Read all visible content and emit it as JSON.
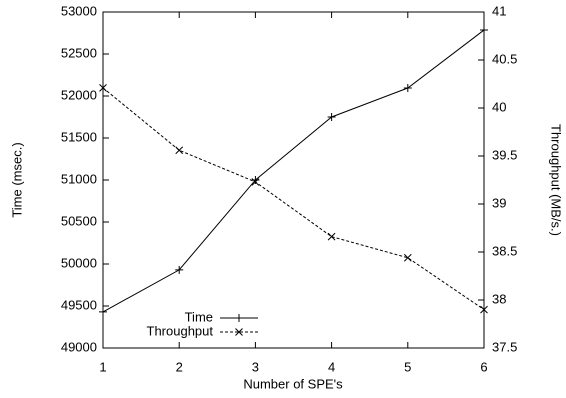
{
  "chart_data": {
    "type": "line",
    "x_label": "Number of SPE's",
    "y_label": "Time (msec.)",
    "y2_label": "Throughput (MB/s.)",
    "x": [
      1,
      2,
      3,
      4,
      5,
      6
    ],
    "xlim": [
      1,
      6
    ],
    "xticks": [
      1,
      2,
      3,
      4,
      5,
      6
    ],
    "ylim": [
      49000,
      53000
    ],
    "yticks": [
      49000,
      49500,
      50000,
      50500,
      51000,
      51500,
      52000,
      52500,
      53000
    ],
    "y2lim": [
      37.5,
      41
    ],
    "y2ticks": [
      37.5,
      38,
      38.5,
      39,
      39.5,
      40,
      40.5,
      41
    ],
    "legend": "lower left",
    "series": [
      {
        "name": "Time",
        "color": "#000000",
        "marker": "plus",
        "dash": "solid",
        "values": [
          49430,
          49930,
          51000,
          51750,
          52095,
          52785
        ]
      },
      {
        "name": "Throughput",
        "color": "#000000",
        "marker": "x",
        "dash": "dashed",
        "axis": "y2",
        "values": [
          40.21,
          39.56,
          39.23,
          38.66,
          38.44,
          37.9
        ]
      }
    ]
  }
}
